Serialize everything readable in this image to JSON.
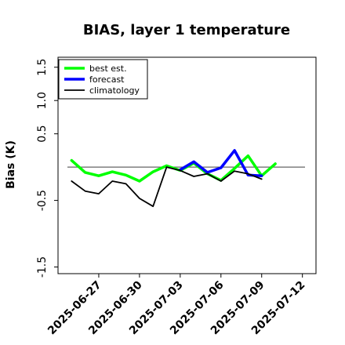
{
  "chart_data": {
    "type": "line",
    "title": "BIAS, layer 1 temperature",
    "xlabel": "",
    "ylabel": "Bias (K)",
    "x_tick_labels": [
      "2025-06-27",
      "2025-06-30",
      "2025-07-03",
      "2025-07-06",
      "2025-07-09",
      "2025-07-12"
    ],
    "x_tick_colors": [
      "#000000",
      "#000000",
      "#228B22",
      "#000000",
      "#000000",
      "#000000"
    ],
    "y_tick_labels": [
      "-1.5",
      "-0.5",
      "0.5",
      "1.0",
      "1.5"
    ],
    "ylim": [
      -1.6,
      1.65
    ],
    "xlim": [
      "2025-06-24",
      "2025-07-13"
    ],
    "grid": false,
    "legend_position": "top-left",
    "zero_line": true,
    "x": [
      "2025-06-25",
      "2025-06-26",
      "2025-06-27",
      "2025-06-28",
      "2025-06-29",
      "2025-06-30",
      "2025-07-01",
      "2025-07-02",
      "2025-07-03",
      "2025-07-04",
      "2025-07-05",
      "2025-07-06",
      "2025-07-07",
      "2025-07-08",
      "2025-07-09",
      "2025-07-10"
    ],
    "series": [
      {
        "name": "best est.",
        "color": "#00ff00",
        "values": [
          0.1,
          -0.08,
          -0.13,
          -0.07,
          -0.12,
          -0.21,
          -0.07,
          0.02,
          -0.05,
          0.06,
          -0.1,
          -0.2,
          -0.02,
          0.17,
          -0.13,
          0.05
        ]
      },
      {
        "name": "forecast",
        "color": "#0000ff",
        "values": [
          null,
          null,
          null,
          null,
          null,
          null,
          null,
          null,
          -0.04,
          0.08,
          -0.08,
          -0.01,
          0.25,
          -0.12,
          -0.13,
          null
        ]
      },
      {
        "name": "climatology",
        "color": "#000000",
        "values": [
          -0.21,
          -0.36,
          -0.4,
          -0.21,
          -0.25,
          -0.47,
          -0.59,
          0.0,
          -0.05,
          -0.14,
          -0.1,
          -0.21,
          -0.06,
          -0.1,
          -0.18,
          null
        ]
      }
    ]
  }
}
